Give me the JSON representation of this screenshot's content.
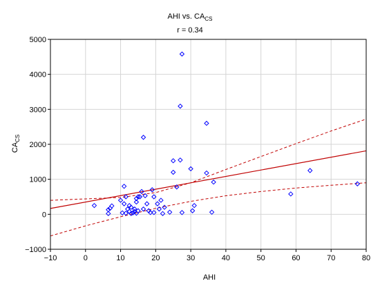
{
  "chart_data": {
    "type": "scatter",
    "title_prefix": "AHI vs. CA",
    "title_sub": "CS",
    "subtitle": "r = 0.34",
    "xlabel": "AHI",
    "ylabel_prefix": "CA",
    "ylabel_sub": "CS",
    "xlim": [
      -10,
      80
    ],
    "ylim": [
      -1000,
      5000
    ],
    "xticks": [
      -10,
      0,
      10,
      20,
      30,
      40,
      50,
      60,
      70,
      80
    ],
    "yticks": [
      -1000,
      0,
      1000,
      2000,
      3000,
      4000,
      5000
    ],
    "xtick_labels": [
      "−10",
      "0",
      "10",
      "20",
      "30",
      "40",
      "50",
      "60",
      "70",
      "80"
    ],
    "ytick_labels": [
      "−1000",
      "0",
      "1000",
      "2000",
      "3000",
      "4000",
      "5000"
    ],
    "grid": true,
    "points": [
      [
        2.5,
        250
      ],
      [
        6.5,
        130
      ],
      [
        6.5,
        20
      ],
      [
        7.0,
        170
      ],
      [
        7.5,
        240
      ],
      [
        10.0,
        400
      ],
      [
        10.5,
        40
      ],
      [
        11.0,
        800
      ],
      [
        11.0,
        300
      ],
      [
        11.5,
        500
      ],
      [
        11.5,
        30
      ],
      [
        12.0,
        150
      ],
      [
        12.5,
        250
      ],
      [
        12.5,
        80
      ],
      [
        13.0,
        200
      ],
      [
        13.0,
        20
      ],
      [
        13.5,
        40
      ],
      [
        14.0,
        150
      ],
      [
        14.0,
        80
      ],
      [
        14.5,
        450
      ],
      [
        14.5,
        350
      ],
      [
        14.5,
        30
      ],
      [
        15.0,
        500
      ],
      [
        15.0,
        100
      ],
      [
        15.5,
        500
      ],
      [
        16.0,
        650
      ],
      [
        16.5,
        2200
      ],
      [
        16.5,
        150
      ],
      [
        17.0,
        530
      ],
      [
        17.5,
        300
      ],
      [
        18.0,
        100
      ],
      [
        18.5,
        50
      ],
      [
        19.0,
        700
      ],
      [
        19.5,
        500
      ],
      [
        19.5,
        50
      ],
      [
        20.5,
        300
      ],
      [
        21.0,
        150
      ],
      [
        21.5,
        400
      ],
      [
        22.0,
        20
      ],
      [
        22.5,
        200
      ],
      [
        24.0,
        60
      ],
      [
        25.0,
        1530
      ],
      [
        25.0,
        1200
      ],
      [
        26.0,
        780
      ],
      [
        27.0,
        1550
      ],
      [
        27.0,
        3090
      ],
      [
        27.5,
        4580
      ],
      [
        27.5,
        50
      ],
      [
        30.0,
        1300
      ],
      [
        30.5,
        100
      ],
      [
        31.0,
        250
      ],
      [
        34.5,
        2600
      ],
      [
        34.5,
        1180
      ],
      [
        36.0,
        60
      ],
      [
        36.5,
        920
      ],
      [
        58.5,
        580
      ],
      [
        64.0,
        1250
      ],
      [
        77.5,
        870
      ]
    ],
    "point_color": "#0000ff",
    "fit_line": {
      "intercept": 350,
      "slope": 18.3,
      "color": "#c00000"
    },
    "confidence_band": {
      "upper": [
        [
          -10,
          400
        ],
        [
          10,
          480
        ],
        [
          20,
          620
        ],
        [
          30,
          900
        ],
        [
          40,
          1280
        ],
        [
          50,
          1650
        ],
        [
          60,
          2020
        ],
        [
          70,
          2380
        ],
        [
          80,
          2720
        ]
      ],
      "lower": [
        [
          -10,
          -620
        ],
        [
          0,
          -330
        ],
        [
          10,
          -70
        ],
        [
          20,
          170
        ],
        [
          30,
          370
        ],
        [
          40,
          530
        ],
        [
          50,
          650
        ],
        [
          60,
          750
        ],
        [
          70,
          830
        ],
        [
          80,
          900
        ]
      ],
      "color": "#c00000"
    }
  }
}
